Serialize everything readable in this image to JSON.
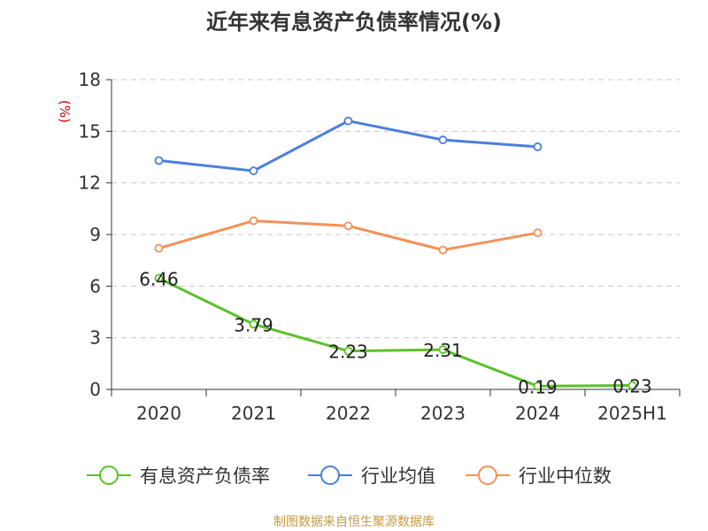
{
  "chart_data": {
    "type": "line",
    "title": "近年来有息资产负债率情况(%)",
    "ylabel": "(%)",
    "xlabel": "",
    "categories": [
      "2020",
      "2021",
      "2022",
      "2023",
      "2024",
      "2025H1"
    ],
    "yticks": [
      "0",
      "3",
      "6",
      "9",
      "12",
      "15",
      "18"
    ],
    "ylim": [
      0,
      18
    ],
    "grid": true,
    "legend_position": "bottom",
    "series": [
      {
        "name": "有息资产负债率",
        "color": "#5cc12a",
        "values": [
          6.46,
          3.79,
          2.23,
          2.31,
          0.19,
          0.23
        ],
        "labels": [
          "6.46",
          "3.79",
          "2.23",
          "2.31",
          "0.19",
          "0.23"
        ]
      },
      {
        "name": "行业均值",
        "color": "#4a7fdc",
        "values": [
          13.3,
          12.7,
          15.6,
          14.5,
          14.1,
          null
        ]
      },
      {
        "name": "行业中位数",
        "color": "#f3925a",
        "values": [
          8.2,
          9.8,
          9.5,
          8.1,
          9.1,
          null
        ]
      }
    ]
  },
  "source": "制图数据来自恒生聚源数据库"
}
